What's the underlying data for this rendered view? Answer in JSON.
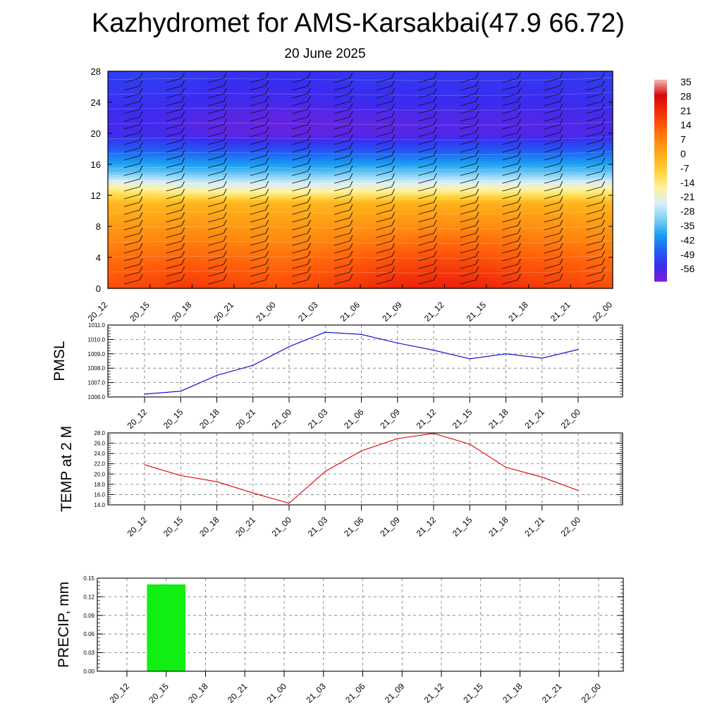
{
  "title": "Kazhydromet for AMS-Karsakbai(47.9 66.72)",
  "subtitle": "20 June 2025",
  "times": [
    "20_12",
    "20_15",
    "20_18",
    "20_21",
    "21_00",
    "21_03",
    "21_06",
    "21_09",
    "21_12",
    "21_15",
    "21_18",
    "21_21",
    "22_00"
  ],
  "chart_data": [
    {
      "type": "heatmap",
      "name": "temperature-profile",
      "x": [
        "20_12",
        "20_15",
        "20_18",
        "20_21",
        "21_00",
        "21_03",
        "21_06",
        "21_09",
        "21_12",
        "21_15",
        "21_18",
        "21_21",
        "22_00"
      ],
      "yticks": [
        "0",
        "4",
        "8",
        "12",
        "16",
        "20",
        "24",
        "28"
      ],
      "ylim": [
        0,
        28
      ],
      "colorbar_labels": [
        "35",
        "28",
        "21",
        "14",
        "7",
        "0",
        "-7",
        "-14",
        "-21",
        "-28",
        "-35",
        "-42",
        "-49",
        "-56"
      ],
      "colorbar_range": [
        -63,
        42
      ],
      "colors": [
        "#7a1fd8",
        "#3a2cf0",
        "#2060f5",
        "#1aa0f2",
        "#7fd0f5",
        "#d8eef8",
        "#fff3a0",
        "#ffd640",
        "#ffb21a",
        "#ff8c10",
        "#ff5a0a",
        "#f02a0a",
        "#d40a0a",
        "#f4b8b8"
      ],
      "temperature_rows": [
        {
          "y": 0,
          "values": [
            20,
            22,
            24,
            22,
            20,
            22,
            25,
            27,
            28,
            27,
            24,
            22,
            20
          ]
        },
        {
          "y": 4,
          "values": [
            14,
            15,
            16,
            15,
            14,
            15,
            17,
            19,
            20,
            19,
            17,
            16,
            14
          ]
        },
        {
          "y": 8,
          "values": [
            7,
            7,
            8,
            7,
            7,
            7,
            8,
            9,
            10,
            10,
            9,
            8,
            7
          ]
        },
        {
          "y": 11,
          "values": [
            0,
            0,
            1,
            1,
            1,
            1,
            1,
            2,
            2,
            2,
            2,
            1,
            1
          ]
        },
        {
          "y": 12.5,
          "values": [
            -10,
            -12,
            -14,
            -15,
            -15,
            -15,
            -14,
            -14,
            -13,
            -13,
            -13,
            -13,
            -12
          ]
        },
        {
          "y": 15,
          "values": [
            -33,
            -33,
            -34,
            -34,
            -34,
            -34,
            -33,
            -33,
            -33,
            -33,
            -33,
            -33,
            -33
          ]
        },
        {
          "y": 18,
          "values": [
            -48,
            -48,
            -49,
            -50,
            -50,
            -50,
            -50,
            -50,
            -49,
            -49,
            -49,
            -49,
            -48
          ]
        },
        {
          "y": 20,
          "values": [
            -56,
            -56,
            -58,
            -60,
            -60,
            -60,
            -59,
            -59,
            -58,
            -58,
            -58,
            -58,
            -57
          ]
        },
        {
          "y": 22,
          "values": [
            -56,
            -56,
            -58,
            -59,
            -60,
            -60,
            -59,
            -58,
            -58,
            -58,
            -58,
            -57,
            -57
          ]
        },
        {
          "y": 24,
          "values": [
            -54,
            -54,
            -55,
            -56,
            -56,
            -56,
            -55,
            -55,
            -55,
            -55,
            -55,
            -55,
            -54
          ]
        },
        {
          "y": 28,
          "values": [
            -52,
            -52,
            -53,
            -54,
            -54,
            -54,
            -53,
            -53,
            -53,
            -53,
            -53,
            -53,
            -52
          ]
        }
      ]
    },
    {
      "type": "line",
      "name": "pmsl",
      "ylabel": "PMSL",
      "x": [
        "20_12",
        "20_15",
        "20_18",
        "20_21",
        "21_00",
        "21_03",
        "21_06",
        "21_09",
        "21_12",
        "21_15",
        "21_18",
        "21_21",
        "22_00"
      ],
      "values": [
        1006.2,
        1006.4,
        1007.5,
        1008.2,
        1009.5,
        1010.5,
        1010.35,
        1009.75,
        1009.25,
        1008.65,
        1009.0,
        1008.7,
        1009.3
      ],
      "ylim": [
        1006.0,
        1011.0
      ],
      "yticks": [
        "1006.0",
        "1007.0",
        "1008.0",
        "1009.0",
        "1010.0",
        "1011.0"
      ],
      "color": "#0000cc"
    },
    {
      "type": "line",
      "name": "temp-2m",
      "ylabel": "TEMP at 2 M",
      "x": [
        "20_12",
        "20_15",
        "20_18",
        "20_21",
        "21_00",
        "21_03",
        "21_06",
        "21_09",
        "21_12",
        "21_15",
        "21_18",
        "21_21",
        "22_00"
      ],
      "values": [
        21.8,
        19.7,
        18.5,
        16.3,
        14.3,
        20.5,
        24.5,
        26.9,
        27.9,
        25.8,
        21.3,
        19.4,
        16.8
      ],
      "ylim": [
        14.0,
        28.0
      ],
      "yticks": [
        "14.0",
        "16.0",
        "18.0",
        "20.0",
        "22.0",
        "24.0",
        "26.0",
        "28.0"
      ],
      "color": "#dd0000"
    },
    {
      "type": "bar",
      "name": "precip",
      "ylabel": "PRECIP, mm",
      "categories": [
        "20_12",
        "20_15",
        "20_18",
        "20_21",
        "21_00",
        "21_03",
        "21_06",
        "21_09",
        "21_12",
        "21_15",
        "21_18",
        "21_21",
        "22_00"
      ],
      "values": [
        0,
        0.14,
        0,
        0,
        0,
        0,
        0,
        0,
        0,
        0,
        0,
        0,
        0
      ],
      "ylim": [
        0,
        0.15
      ],
      "yticks": [
        "0.00",
        "0.03",
        "0.06",
        "0.09",
        "0.12",
        "0.15"
      ],
      "color": "#11ee11"
    }
  ]
}
